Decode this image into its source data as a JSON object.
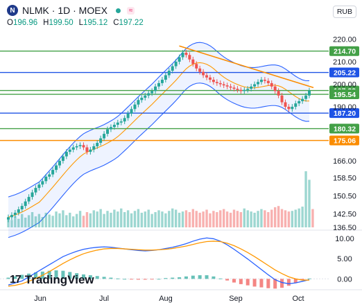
{
  "header": {
    "ticker": "NLMK",
    "timeframe": "1D",
    "exchange": "MOEX",
    "title": "NLMK · 1D · MOEX",
    "logo_letter": "N",
    "currency": "RUB",
    "ohlc": {
      "o_label": "O",
      "o": "196.96",
      "h_label": "H",
      "h": "199.50",
      "l_label": "L",
      "l": "195.12",
      "c_label": "C",
      "c": "197.22"
    }
  },
  "brand": "TradingView",
  "colors": {
    "up": "#26a69a",
    "down": "#ef5350",
    "band": "#2962ff",
    "ma": "#ff9800",
    "green_level": "#43a047",
    "blue_level": "#1e53e5",
    "orange_level": "#fb8c00"
  },
  "chart_data": [
    {
      "type": "candlestick",
      "ylim": [
        136.5,
        222
      ],
      "y_ticks": [
        220.0,
        210.0,
        200.0,
        190.0,
        166.0,
        158.5,
        150.5,
        142.5,
        136.5
      ],
      "x_labels": [
        "Jun",
        "Jul",
        "Aug",
        "Sep",
        "Oct"
      ],
      "price_levels": [
        {
          "value": 214.7,
          "label": "214.70",
          "color": "#43a047"
        },
        {
          "value": 205.22,
          "label": "205.22",
          "color": "#1e53e5"
        },
        {
          "value": 197.22,
          "label": "197.22",
          "color": "#43a047"
        },
        {
          "value": 195.54,
          "label": "195.54",
          "color": "#43a047"
        },
        {
          "value": 187.2,
          "label": "187.20",
          "color": "#1e53e5"
        },
        {
          "value": 180.32,
          "label": "180.32",
          "color": "#43a047"
        },
        {
          "value": 175.06,
          "label": "175.06",
          "color": "#fb8c00"
        }
      ],
      "trendline": {
        "from_price": 217,
        "to_price": 198.5,
        "color": "#fb8c00"
      },
      "closes": [
        141,
        142,
        143,
        144.5,
        146,
        148,
        150,
        152,
        154,
        155.5,
        157,
        159,
        160,
        162,
        164,
        166,
        168,
        170,
        171,
        172,
        172.5,
        173,
        172,
        170,
        171,
        172.5,
        174,
        176,
        178,
        180,
        181,
        182,
        183,
        183.5,
        185,
        187,
        189,
        191,
        193,
        194,
        195,
        196,
        197,
        199,
        200.5,
        202,
        204,
        206,
        208,
        210,
        212,
        214,
        213,
        211,
        209,
        207,
        205.5,
        204,
        203,
        202,
        201,
        200.5,
        200,
        199.5,
        199,
        198.5,
        198,
        197.5,
        197,
        197.5,
        198,
        199,
        200,
        201,
        202,
        201.5,
        200.5,
        199,
        197,
        195,
        192,
        190,
        189,
        190,
        191.5,
        192.5,
        193.5,
        195,
        197.22
      ],
      "volume_range": [
        0,
        100
      ],
      "volumes": [
        15,
        12,
        18,
        14,
        22,
        16,
        20,
        25,
        18,
        22,
        17,
        24,
        21,
        19,
        26,
        23,
        28,
        20,
        24,
        18,
        22,
        27,
        19,
        25,
        23,
        28,
        26,
        30,
        22,
        27,
        24,
        29,
        26,
        31,
        25,
        28,
        23,
        27,
        30,
        24,
        26,
        29,
        22,
        25,
        28,
        26,
        23,
        27,
        31,
        29,
        24,
        26,
        28,
        25,
        30,
        27,
        24,
        26,
        29,
        23,
        27,
        25,
        28,
        30,
        26,
        24,
        29,
        27,
        25,
        31,
        28,
        26,
        24,
        27,
        30,
        28,
        25,
        29,
        33,
        35,
        30,
        28,
        26,
        27,
        29,
        31,
        34,
        92,
        78,
        30
      ]
    },
    {
      "type": "line",
      "name": "",
      "ylim": [
        -2,
        11
      ],
      "y_ticks": [
        10.0,
        5.0,
        0.0
      ],
      "series": [
        {
          "color": "#2962ff",
          "values": [
            -1.5,
            -1,
            -0.5,
            0.5,
            1.5,
            2.5,
            3.5,
            4.5,
            5.5,
            6.2,
            6.8,
            7.3,
            7.6,
            7.8,
            7.9,
            7.8,
            7.6,
            7.4,
            7.2,
            7.0,
            6.9,
            7.0,
            7.2,
            7.5,
            7.8,
            8.2,
            8.7,
            9.3,
            9.8,
            10.1,
            9.9,
            9.3,
            8.4,
            7.3,
            6.1,
            4.9,
            3.6,
            2.3,
            1.0,
            -0.2,
            -0.9,
            -1.2,
            -1.0,
            -0.6,
            -0.2
          ]
        },
        {
          "color": "#ff9800",
          "values": [
            -1.8,
            -1.6,
            -1.2,
            -0.6,
            0.1,
            0.9,
            1.8,
            2.8,
            3.8,
            4.7,
            5.5,
            6.2,
            6.7,
            7.1,
            7.4,
            7.5,
            7.5,
            7.4,
            7.3,
            7.2,
            7.1,
            7.1,
            7.2,
            7.3,
            7.5,
            7.8,
            8.1,
            8.5,
            8.9,
            9.2,
            9.3,
            9.2,
            8.8,
            8.2,
            7.4,
            6.5,
            5.5,
            4.4,
            3.3,
            2.2,
            1.3,
            0.5,
            0.0,
            -0.3,
            -0.3
          ]
        }
      ],
      "histogram": [
        0.3,
        0.6,
        1.0,
        1.3,
        1.6,
        1.8,
        2.0,
        2.1,
        2.0,
        1.7,
        1.4,
        1.1,
        0.9,
        0.7,
        0.5,
        0.3,
        0.1,
        0.0,
        -0.1,
        -0.2,
        -0.2,
        -0.1,
        0.0,
        0.2,
        0.3,
        0.4,
        0.6,
        0.8,
        0.9,
        0.9,
        0.6,
        0.1,
        -0.4,
        -0.9,
        -1.3,
        -1.6,
        -1.9,
        -2.1,
        -2.3,
        -2.4,
        -2.2,
        -1.7,
        -1.0,
        -0.3,
        0.1
      ]
    }
  ]
}
